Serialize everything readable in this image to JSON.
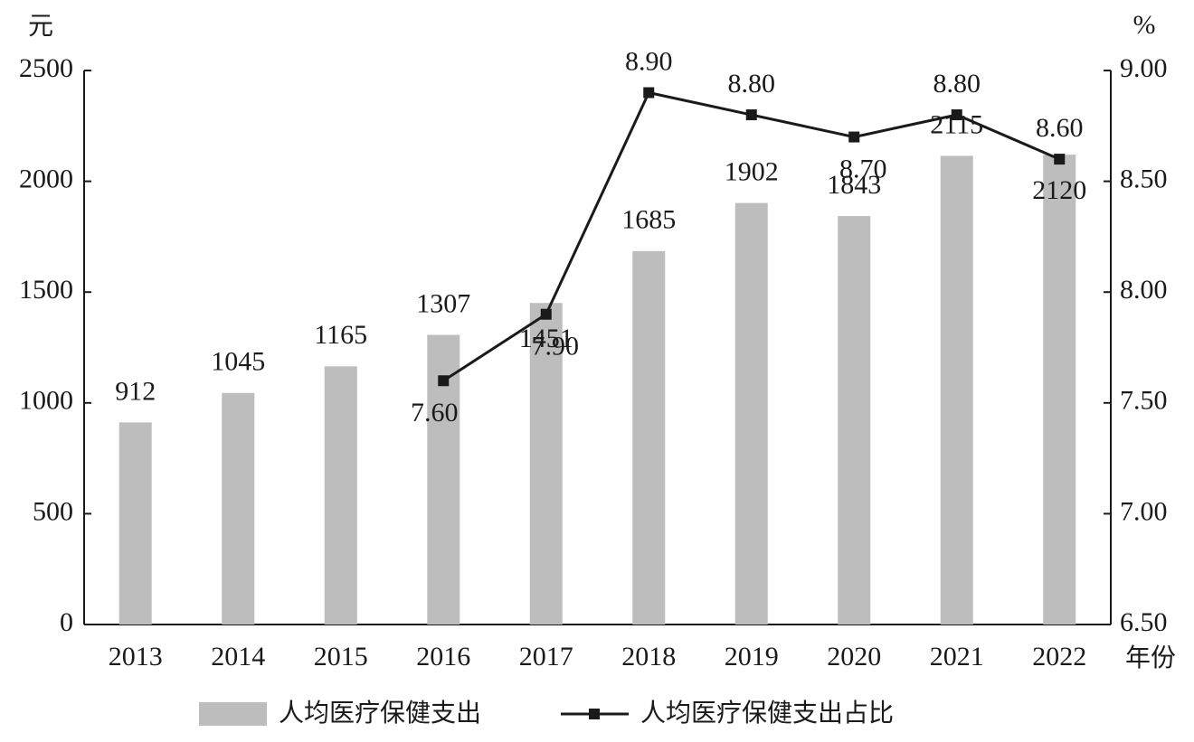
{
  "chart_data": {
    "type": "bar",
    "y_unit": "元",
    "y2_unit": "%",
    "x_label": "年份",
    "categories": [
      "2013",
      "2014",
      "2015",
      "2016",
      "2017",
      "2018",
      "2019",
      "2020",
      "2021",
      "2022"
    ],
    "series": [
      {
        "name": "人均医疗保健支出",
        "type": "bar",
        "color": "#bdbdbd",
        "values": [
          912,
          1045,
          1165,
          1307,
          1451,
          1685,
          1902,
          1843,
          2115,
          2120
        ]
      },
      {
        "name": "人均医疗保健支出占比",
        "type": "line",
        "axis": "y2",
        "color": "#1a1a1a",
        "values": [
          null,
          null,
          null,
          7.6,
          7.9,
          8.9,
          8.8,
          8.7,
          8.8,
          8.6
        ],
        "value_labels": [
          null,
          null,
          null,
          "7.60",
          "7.90",
          "8.90",
          "8.80",
          "8.70",
          "8.80",
          "8.60"
        ]
      }
    ],
    "ylim": [
      0,
      2500
    ],
    "yticks": [
      0,
      500,
      1000,
      1500,
      2000,
      2500
    ],
    "y2lim": [
      6.5,
      9
    ],
    "y2ticks": [
      {
        "value": 6.5,
        "label": "6.50"
      },
      {
        "value": 7,
        "label": "7.00"
      },
      {
        "value": 7.5,
        "label": "7.50"
      },
      {
        "value": 8,
        "label": "8.00"
      },
      {
        "value": 8.5,
        "label": "8.50"
      },
      {
        "value": 9,
        "label": "9.00"
      }
    ],
    "grid": false
  }
}
